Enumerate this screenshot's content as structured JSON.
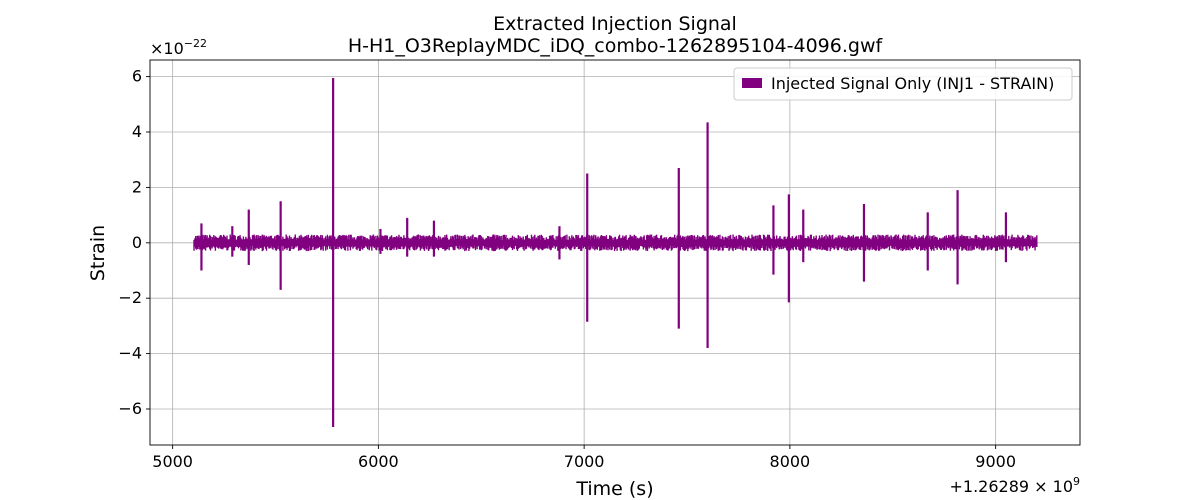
{
  "chart_data": {
    "type": "line",
    "title": "Extracted Injection Signal",
    "subtitle": "H-H1_O3ReplayMDC_iDQ_combo-1262895104-4096.gwf",
    "xlabel": "Time (s)",
    "ylabel": "Strain",
    "x_offset_label": "+1.26289 × 10",
    "x_offset_exp": "9",
    "y_scale_label": "×10",
    "y_scale_exp": "−22",
    "xlim": [
      4890,
      9410
    ],
    "ylim": [
      -7.3,
      6.6
    ],
    "x_ticks": [
      5000,
      6000,
      7000,
      8000,
      9000
    ],
    "x_tick_labels": [
      "5000",
      "6000",
      "7000",
      "8000",
      "9000"
    ],
    "y_ticks": [
      -6,
      -4,
      -2,
      0,
      2,
      4,
      6
    ],
    "y_tick_labels": [
      "−6",
      "−4",
      "−2",
      "0",
      "2",
      "4",
      "6"
    ],
    "grid": true,
    "legend_position": "top-right",
    "series": [
      {
        "name": "Injected Signal Only (INJ1 - STRAIN)",
        "color": "#800080",
        "x_range": [
          5104,
          9200
        ],
        "baseline_envelope": [
          -0.3,
          0.3
        ],
        "spikes": [
          {
            "x": 5140,
            "max": 0.7,
            "min": -1.0
          },
          {
            "x": 5290,
            "max": 0.6,
            "min": -0.5
          },
          {
            "x": 5370,
            "max": 1.2,
            "min": -0.8
          },
          {
            "x": 5525,
            "max": 1.5,
            "min": -1.7
          },
          {
            "x": 5780,
            "max": 5.95,
            "min": -6.65
          },
          {
            "x": 6010,
            "max": 0.5,
            "min": -0.4
          },
          {
            "x": 6140,
            "max": 0.9,
            "min": -0.5
          },
          {
            "x": 6270,
            "max": 0.8,
            "min": -0.5
          },
          {
            "x": 6560,
            "max": 0.3,
            "min": -0.3
          },
          {
            "x": 6880,
            "max": 0.6,
            "min": -0.6
          },
          {
            "x": 7015,
            "max": 2.5,
            "min": -2.85
          },
          {
            "x": 7460,
            "max": 2.7,
            "min": -3.1
          },
          {
            "x": 7600,
            "max": 4.35,
            "min": -3.8
          },
          {
            "x": 7920,
            "max": 1.35,
            "min": -1.15
          },
          {
            "x": 7995,
            "max": 1.75,
            "min": -2.15
          },
          {
            "x": 8065,
            "max": 1.2,
            "min": -0.7
          },
          {
            "x": 8360,
            "max": 1.4,
            "min": -1.4
          },
          {
            "x": 8670,
            "max": 1.1,
            "min": -1.0
          },
          {
            "x": 8815,
            "max": 1.9,
            "min": -1.5
          },
          {
            "x": 9050,
            "max": 1.1,
            "min": -0.7
          }
        ]
      }
    ]
  }
}
